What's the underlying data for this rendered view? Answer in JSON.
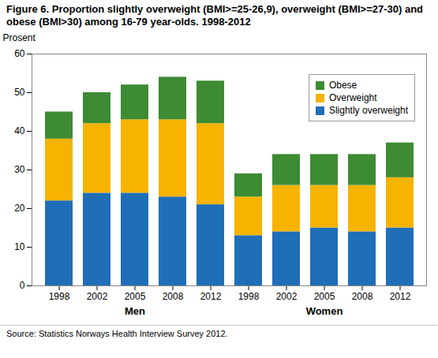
{
  "chart_data": {
    "type": "bar",
    "title": "Figure 6. Proportion slightly overweight (BMI>=25-26,9), overweight (BMI>=27-30) and obese (BMI>30) among 16-79 year-olds. 1998-2012",
    "y_label": "Prosent",
    "caption": "Source: Statistics Norways Health Interview Survey 2012.",
    "categories": [
      "1998",
      "2002",
      "2005",
      "2008",
      "2012",
      "1998",
      "2002",
      "2005",
      "2008",
      "2012"
    ],
    "groups": [
      "Men",
      "Men",
      "Men",
      "Men",
      "Men",
      "Women",
      "Women",
      "Women",
      "Women",
      "Women"
    ],
    "series": [
      {
        "name": "Slightly overweight",
        "color": "#1f6eb8",
        "values": [
          22,
          24,
          24,
          23,
          21,
          13,
          14,
          15,
          14,
          15
        ]
      },
      {
        "name": "Overweight",
        "color": "#f6b300",
        "values": [
          16,
          18,
          19,
          20,
          21,
          10,
          12,
          11,
          12,
          13
        ]
      },
      {
        "name": "Obese",
        "color": "#3d8b33",
        "values": [
          7,
          8,
          9,
          11,
          11,
          6,
          8,
          8,
          8,
          9
        ]
      }
    ],
    "stacked": true,
    "ylim": [
      0,
      60
    ],
    "yticks": [
      0,
      10,
      20,
      30,
      40,
      50,
      60
    ],
    "grid": false,
    "legend": "top-right",
    "data_labels": false
  }
}
